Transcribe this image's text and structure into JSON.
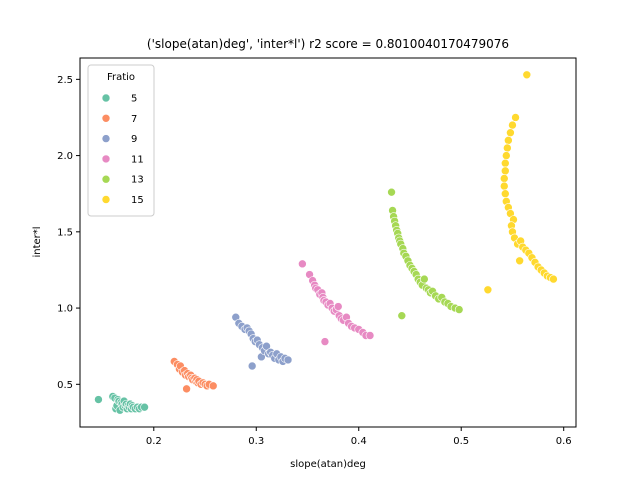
{
  "chart_data": {
    "type": "scatter",
    "title": "('slope(atan)deg', 'inter*l') r2 score = 0.8010040170479076",
    "xlabel": "slope(atan)deg",
    "ylabel": "inter*l",
    "xlim": [
      0.128,
      0.612
    ],
    "ylim": [
      0.22,
      2.64
    ],
    "xticks": [
      "0.2",
      "0.3",
      "0.4",
      "0.5",
      "0.6"
    ],
    "xtick_values": [
      0.2,
      0.3,
      0.4,
      0.5,
      0.6
    ],
    "yticks": [
      "0.5",
      "1.0",
      "1.5",
      "2.0",
      "2.5"
    ],
    "ytick_values": [
      0.5,
      1.0,
      1.5,
      2.0,
      2.5
    ],
    "legend_title": "Fratio",
    "legend_position": "upper-left",
    "grid": false,
    "series": [
      {
        "name": "5",
        "color": "#66c2a5",
        "points": [
          [
            0.146,
            0.4
          ],
          [
            0.16,
            0.42
          ],
          [
            0.162,
            0.41
          ],
          [
            0.163,
            0.34
          ],
          [
            0.164,
            0.36
          ],
          [
            0.165,
            0.4
          ],
          [
            0.166,
            0.39
          ],
          [
            0.167,
            0.33
          ],
          [
            0.168,
            0.38
          ],
          [
            0.169,
            0.37
          ],
          [
            0.17,
            0.35
          ],
          [
            0.171,
            0.39
          ],
          [
            0.172,
            0.36
          ],
          [
            0.173,
            0.37
          ],
          [
            0.174,
            0.34
          ],
          [
            0.175,
            0.36
          ],
          [
            0.176,
            0.35
          ],
          [
            0.177,
            0.37
          ],
          [
            0.178,
            0.34
          ],
          [
            0.179,
            0.36
          ],
          [
            0.18,
            0.35
          ],
          [
            0.182,
            0.34
          ],
          [
            0.184,
            0.35
          ],
          [
            0.186,
            0.34
          ],
          [
            0.188,
            0.35
          ],
          [
            0.191,
            0.35
          ]
        ]
      },
      {
        "name": "7",
        "color": "#fc8d62",
        "points": [
          [
            0.22,
            0.65
          ],
          [
            0.223,
            0.63
          ],
          [
            0.225,
            0.6
          ],
          [
            0.226,
            0.62
          ],
          [
            0.228,
            0.58
          ],
          [
            0.23,
            0.59
          ],
          [
            0.231,
            0.56
          ],
          [
            0.232,
            0.47
          ],
          [
            0.233,
            0.57
          ],
          [
            0.234,
            0.55
          ],
          [
            0.236,
            0.56
          ],
          [
            0.237,
            0.54
          ],
          [
            0.238,
            0.53
          ],
          [
            0.24,
            0.54
          ],
          [
            0.241,
            0.52
          ],
          [
            0.242,
            0.53
          ],
          [
            0.243,
            0.51
          ],
          [
            0.244,
            0.52
          ],
          [
            0.246,
            0.5
          ],
          [
            0.248,
            0.51
          ],
          [
            0.25,
            0.5
          ],
          [
            0.252,
            0.49
          ],
          [
            0.254,
            0.5
          ],
          [
            0.258,
            0.49
          ]
        ]
      },
      {
        "name": "9",
        "color": "#8da0cb",
        "points": [
          [
            0.28,
            0.94
          ],
          [
            0.283,
            0.9
          ],
          [
            0.286,
            0.88
          ],
          [
            0.289,
            0.86
          ],
          [
            0.291,
            0.87
          ],
          [
            0.293,
            0.85
          ],
          [
            0.295,
            0.83
          ],
          [
            0.296,
            0.62
          ],
          [
            0.297,
            0.8
          ],
          [
            0.299,
            0.78
          ],
          [
            0.301,
            0.79
          ],
          [
            0.303,
            0.76
          ],
          [
            0.305,
            0.68
          ],
          [
            0.306,
            0.74
          ],
          [
            0.308,
            0.72
          ],
          [
            0.31,
            0.75
          ],
          [
            0.312,
            0.7
          ],
          [
            0.314,
            0.71
          ],
          [
            0.316,
            0.69
          ],
          [
            0.318,
            0.67
          ],
          [
            0.32,
            0.7
          ],
          [
            0.322,
            0.66
          ],
          [
            0.324,
            0.68
          ],
          [
            0.326,
            0.65
          ],
          [
            0.328,
            0.67
          ],
          [
            0.331,
            0.66
          ]
        ]
      },
      {
        "name": "11",
        "color": "#e78ac3",
        "points": [
          [
            0.345,
            1.29
          ],
          [
            0.352,
            1.22
          ],
          [
            0.355,
            1.18
          ],
          [
            0.357,
            1.15
          ],
          [
            0.358,
            1.13
          ],
          [
            0.36,
            1.12
          ],
          [
            0.362,
            1.09
          ],
          [
            0.364,
            1.1
          ],
          [
            0.365,
            1.07
          ],
          [
            0.366,
            1.05
          ],
          [
            0.367,
            0.78
          ],
          [
            0.368,
            1.04
          ],
          [
            0.37,
            1.02
          ],
          [
            0.372,
            1.03
          ],
          [
            0.374,
            1.0
          ],
          [
            0.376,
            0.98
          ],
          [
            0.378,
            0.99
          ],
          [
            0.38,
            1.01
          ],
          [
            0.381,
            0.95
          ],
          [
            0.383,
            0.93
          ],
          [
            0.385,
            0.92
          ],
          [
            0.388,
            0.94
          ],
          [
            0.39,
            0.9
          ],
          [
            0.393,
            0.88
          ],
          [
            0.396,
            0.87
          ],
          [
            0.4,
            0.86
          ],
          [
            0.404,
            0.84
          ],
          [
            0.407,
            0.82
          ],
          [
            0.411,
            0.82
          ]
        ]
      },
      {
        "name": "13",
        "color": "#a6d854",
        "points": [
          [
            0.432,
            1.76
          ],
          [
            0.433,
            1.64
          ],
          [
            0.434,
            1.6
          ],
          [
            0.435,
            1.57
          ],
          [
            0.436,
            1.54
          ],
          [
            0.437,
            1.51
          ],
          [
            0.438,
            1.49
          ],
          [
            0.439,
            1.46
          ],
          [
            0.44,
            1.44
          ],
          [
            0.441,
            1.42
          ],
          [
            0.442,
            0.95
          ],
          [
            0.443,
            1.39
          ],
          [
            0.444,
            1.36
          ],
          [
            0.446,
            1.34
          ],
          [
            0.448,
            1.31
          ],
          [
            0.45,
            1.28
          ],
          [
            0.452,
            1.26
          ],
          [
            0.454,
            1.24
          ],
          [
            0.456,
            1.22
          ],
          [
            0.458,
            1.19
          ],
          [
            0.46,
            1.17
          ],
          [
            0.462,
            1.15
          ],
          [
            0.464,
            1.19
          ],
          [
            0.466,
            1.13
          ],
          [
            0.468,
            1.12
          ],
          [
            0.47,
            1.1
          ],
          [
            0.472,
            1.11
          ],
          [
            0.475,
            1.08
          ],
          [
            0.478,
            1.06
          ],
          [
            0.481,
            1.07
          ],
          [
            0.484,
            1.04
          ],
          [
            0.487,
            1.03
          ],
          [
            0.49,
            1.01
          ],
          [
            0.494,
            1.0
          ],
          [
            0.498,
            0.99
          ]
        ]
      },
      {
        "name": "15",
        "color": "#ffd92f",
        "points": [
          [
            0.564,
            2.53
          ],
          [
            0.553,
            2.25
          ],
          [
            0.55,
            2.2
          ],
          [
            0.548,
            2.15
          ],
          [
            0.546,
            2.1
          ],
          [
            0.545,
            2.05
          ],
          [
            0.544,
            2.0
          ],
          [
            0.543,
            1.95
          ],
          [
            0.543,
            1.9
          ],
          [
            0.542,
            1.85
          ],
          [
            0.542,
            1.8
          ],
          [
            0.543,
            1.75
          ],
          [
            0.544,
            1.7
          ],
          [
            0.546,
            1.66
          ],
          [
            0.548,
            1.62
          ],
          [
            0.551,
            1.58
          ],
          [
            0.549,
            1.54
          ],
          [
            0.55,
            1.5
          ],
          [
            0.552,
            1.46
          ],
          [
            0.555,
            1.42
          ],
          [
            0.557,
            1.31
          ],
          [
            0.558,
            1.44
          ],
          [
            0.56,
            1.4
          ],
          [
            0.563,
            1.38
          ],
          [
            0.566,
            1.36
          ],
          [
            0.569,
            1.33
          ],
          [
            0.572,
            1.3
          ],
          [
            0.575,
            1.27
          ],
          [
            0.578,
            1.25
          ],
          [
            0.581,
            1.23
          ],
          [
            0.584,
            1.21
          ],
          [
            0.587,
            1.2
          ],
          [
            0.59,
            1.19
          ],
          [
            0.526,
            1.12
          ]
        ]
      }
    ]
  }
}
